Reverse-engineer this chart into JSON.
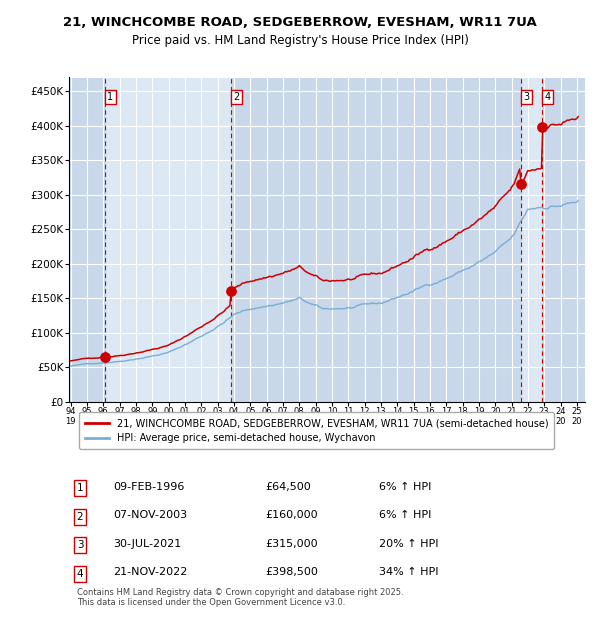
{
  "title_line1": "21, WINCHCOMBE ROAD, SEDGEBERROW, EVESHAM, WR11 7UA",
  "title_line2": "Price paid vs. HM Land Registry's House Price Index (HPI)",
  "ylim": [
    0,
    470000
  ],
  "yticks": [
    0,
    50000,
    100000,
    150000,
    200000,
    250000,
    300000,
    350000,
    400000,
    450000
  ],
  "ytick_labels": [
    "£0",
    "£50K",
    "£100K",
    "£150K",
    "£200K",
    "£250K",
    "£300K",
    "£350K",
    "£400K",
    "£450K"
  ],
  "background_color": "#ffffff",
  "plot_bg_color": "#dce9f5",
  "plot_bg_alt_color": "#c8d8ea",
  "grid_color": "#ffffff",
  "hpi_line_color": "#7aadd4",
  "price_line_color": "#cc0000",
  "sale_dot_color": "#cc0000",
  "dashed_line_color": "#cc0000",
  "sales": [
    {
      "num": 1,
      "date_num": 1996.107,
      "price": 64500,
      "pct_above": 1.06
    },
    {
      "num": 2,
      "date_num": 2003.836,
      "price": 160000,
      "pct_above": 1.06
    },
    {
      "num": 3,
      "date_num": 2021.58,
      "price": 315000,
      "pct_above": 1.2
    },
    {
      "num": 4,
      "date_num": 2022.893,
      "price": 398500,
      "pct_above": 1.34
    }
  ],
  "legend_label_red": "21, WINCHCOMBE ROAD, SEDGEBERROW, EVESHAM, WR11 7UA (semi-detached house)",
  "legend_label_blue": "HPI: Average price, semi-detached house, Wychavon",
  "footnote": "Contains HM Land Registry data © Crown copyright and database right 2025.\nThis data is licensed under the Open Government Licence v3.0.",
  "table_entries": [
    {
      "num": 1,
      "date": "09-FEB-1996",
      "price": "£64,500",
      "pct": "6% ↑ HPI"
    },
    {
      "num": 2,
      "date": "07-NOV-2003",
      "price": "£160,000",
      "pct": "6% ↑ HPI"
    },
    {
      "num": 3,
      "date": "30-JUL-2021",
      "price": "£315,000",
      "pct": "20% ↑ HPI"
    },
    {
      "num": 4,
      "date": "21-NOV-2022",
      "price": "£398,500",
      "pct": "34% ↑ HPI"
    }
  ],
  "xaxis_start": 1993.9,
  "xaxis_end": 2025.5,
  "xtick_years": [
    1994,
    1995,
    1996,
    1997,
    1998,
    1999,
    2000,
    2001,
    2002,
    2003,
    2004,
    2005,
    2006,
    2007,
    2008,
    2009,
    2010,
    2011,
    2012,
    2013,
    2014,
    2015,
    2016,
    2017,
    2018,
    2019,
    2020,
    2021,
    2022,
    2023,
    2024,
    2025
  ]
}
